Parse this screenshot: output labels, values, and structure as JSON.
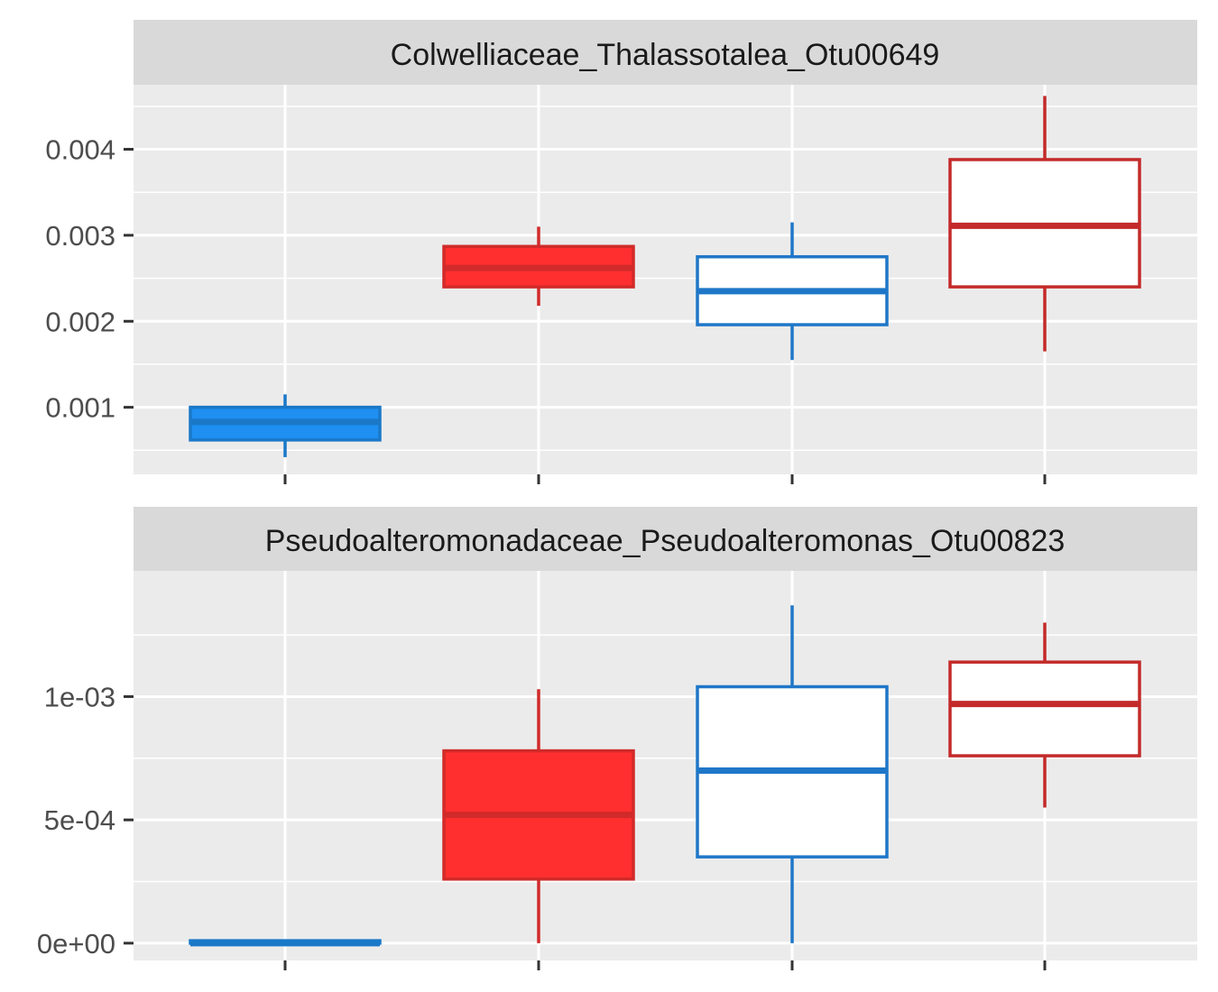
{
  "chart_data": [
    {
      "type": "boxplot",
      "facet_label": "Colwelliaceae_Thalassotalea_Otu00649",
      "ylim": [
        0.00022,
        0.00475
      ],
      "y_ticks": [
        0.001,
        0.002,
        0.003,
        0.004
      ],
      "y_tick_labels": [
        "0.001",
        "0.002",
        "0.003",
        "0.004"
      ],
      "categories": [
        "",
        "",
        "",
        ""
      ],
      "grid": true,
      "boxes": [
        {
          "min": 0.00042,
          "q1": 0.00062,
          "median": 0.00083,
          "q3": 0.001,
          "max": 0.00115,
          "fill": "#1f8ff2",
          "stroke": "#1a78c8",
          "filled": true
        },
        {
          "min": 0.00218,
          "q1": 0.0024,
          "median": 0.00262,
          "q3": 0.00287,
          "max": 0.0031,
          "fill": "#ff2f2f",
          "stroke": "#d12a2a",
          "filled": true
        },
        {
          "min": 0.00155,
          "q1": 0.00196,
          "median": 0.00235,
          "q3": 0.00275,
          "max": 0.00315,
          "fill": "#ffffff",
          "stroke": "#1f77c8",
          "filled": false
        },
        {
          "min": 0.00165,
          "q1": 0.0024,
          "median": 0.00311,
          "q3": 0.00388,
          "max": 0.00462,
          "fill": "#ffffff",
          "stroke": "#c42a2a",
          "filled": false
        }
      ]
    },
    {
      "type": "boxplot",
      "facet_label": "Pseudoalteromonadaceae_Pseudoalteromonas_Otu00823",
      "ylim": [
        -7e-05,
        0.00151
      ],
      "y_ticks": [
        0,
        0.0005,
        0.001
      ],
      "y_tick_labels": [
        "0e+00",
        "5e-04",
        "1e-03"
      ],
      "categories": [
        "",
        "",
        "",
        ""
      ],
      "grid": true,
      "boxes": [
        {
          "min": 0.0,
          "q1": 0.0,
          "median": 0.0,
          "q3": 1e-05,
          "max": 1e-05,
          "fill": "#1f8ff2",
          "stroke": "#1a78c8",
          "filled": true
        },
        {
          "min": 0.0,
          "q1": 0.00026,
          "median": 0.00052,
          "q3": 0.00078,
          "max": 0.00103,
          "fill": "#ff2f2f",
          "stroke": "#d12a2a",
          "filled": true
        },
        {
          "min": 0.0,
          "q1": 0.00035,
          "median": 0.0007,
          "q3": 0.00104,
          "max": 0.00137,
          "fill": "#ffffff",
          "stroke": "#1f77c8",
          "filled": false
        },
        {
          "min": 0.00055,
          "q1": 0.00076,
          "median": 0.00097,
          "q3": 0.00114,
          "max": 0.0013,
          "fill": "#ffffff",
          "stroke": "#c42a2a",
          "filled": false
        }
      ]
    }
  ],
  "colors": {
    "panel_background": "#ebebeb",
    "strip_background": "#d9d9d9",
    "grid_line": "#ffffff",
    "tick_mark": "#333333"
  }
}
